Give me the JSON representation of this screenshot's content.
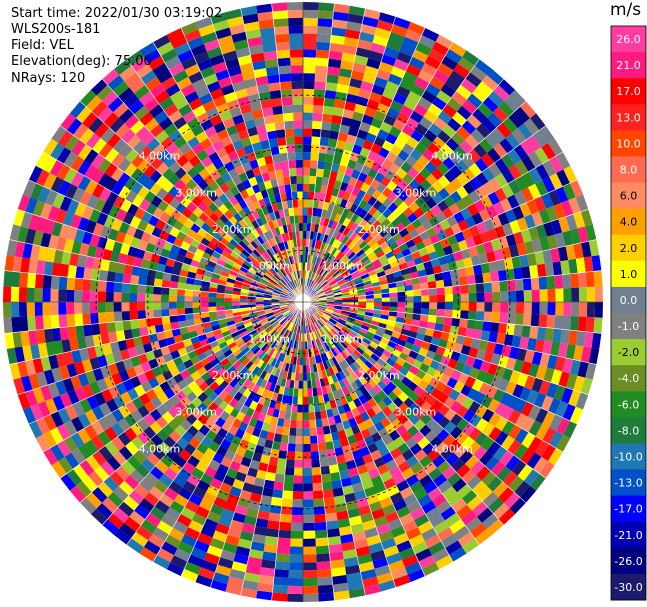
{
  "info": {
    "start_time": "Start time: 2022/01/30 03:19:02",
    "instrument": "WLS200s-181",
    "field": "Field: VEL",
    "elevation": "Elevation(deg): 75.00",
    "nrays": "NRays: 120"
  },
  "chart_data": {
    "type": "heatmap",
    "projection": "polar (PPI scan)",
    "title": "",
    "n_rays": 120,
    "n_range_gates": 38,
    "range_rings_km": [
      1.0,
      2.0,
      3.0,
      4.0
    ],
    "range_ring_labels": [
      "1.00km",
      "2.00km",
      "3.00km",
      "4.00km"
    ],
    "colorbar": {
      "unit_label": "m/s",
      "range": [
        -30.0,
        30.0
      ],
      "tick_labels": [
        "26.0",
        "21.0",
        "17.0",
        "13.0",
        "10.0",
        "8.0",
        "6.0",
        "4.0",
        "2.0",
        "1.0",
        "0.0",
        "-1.0",
        "-2.0",
        "-4.0",
        "-6.0",
        "-8.0",
        "-10.0",
        "-13.0",
        "-17.0",
        "-21.0",
        "-26.0",
        "-30.0"
      ],
      "colors": [
        "#ff3ca0",
        "#ff1a80",
        "#ff0000",
        "#ff2020",
        "#ff4500",
        "#ff6a50",
        "#ff8c60",
        "#ffa000",
        "#ffd000",
        "#ffff00",
        "#708090",
        "#808080",
        "#9acd32",
        "#6b8e23",
        "#228b22",
        "#1e7b3a",
        "#1f77b4",
        "#0050c8",
        "#0000ff",
        "#0000b0",
        "#000080",
        "#1a1a6e"
      ]
    },
    "grid": true,
    "note": "Velocity field appears as dense noise across all rays and gates."
  }
}
